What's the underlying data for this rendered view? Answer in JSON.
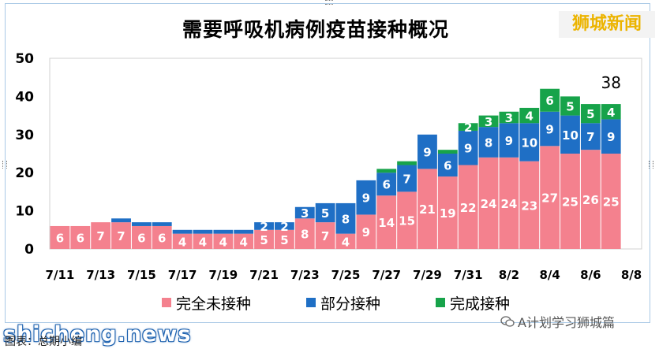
{
  "header": {
    "brand": "狮城新闻"
  },
  "chart_data": {
    "type": "bar",
    "stacked": true,
    "title": "需要呼吸机病例疫苗接种概况",
    "x": [
      "7/11",
      "7/12",
      "7/13",
      "7/14",
      "7/15",
      "7/16",
      "7/17",
      "7/18",
      "7/19",
      "7/20",
      "7/21",
      "7/22",
      "7/23",
      "7/24",
      "7/25",
      "7/26",
      "7/27",
      "7/28",
      "7/29",
      "7/30",
      "7/31",
      "8/1",
      "8/2",
      "8/3",
      "8/4",
      "8/5",
      "8/6",
      "8/7"
    ],
    "tick_labels": [
      "7/11",
      "7/13",
      "7/15",
      "7/17",
      "7/19",
      "7/21",
      "7/23",
      "7/25",
      "7/27",
      "7/29",
      "7/31",
      "8/2",
      "8/4",
      "8/6",
      "8/8"
    ],
    "series": [
      {
        "name": "完全未接种",
        "color": "#f4818e",
        "values": [
          6,
          6,
          7,
          7,
          6,
          6,
          4,
          4,
          4,
          4,
          5,
          5,
          8,
          7,
          4,
          9,
          14,
          15,
          21,
          19,
          22,
          24,
          24,
          23,
          27,
          25,
          26,
          25
        ]
      },
      {
        "name": "部分接种",
        "color": "#1f6fc5",
        "values": [
          0,
          0,
          0,
          1,
          1,
          1,
          1,
          1,
          1,
          1,
          2,
          2,
          3,
          5,
          8,
          9,
          6,
          7,
          9,
          6,
          9,
          8,
          9,
          10,
          9,
          10,
          7,
          9
        ]
      },
      {
        "name": "完成接种",
        "color": "#17a34a",
        "values": [
          0,
          0,
          0,
          0,
          0,
          0,
          0,
          0,
          0,
          0,
          0,
          0,
          0,
          0,
          0,
          0,
          1,
          1,
          0,
          1,
          2,
          3,
          3,
          4,
          6,
          5,
          5,
          4
        ]
      }
    ],
    "data_labels": {
      "完全未接种": [
        "6",
        "6",
        "7",
        "7",
        "6",
        "6",
        "4",
        "4",
        "4",
        "4",
        "5",
        "5",
        "8",
        "7",
        "4",
        "9",
        "14",
        "15",
        "21",
        "19",
        "22",
        "24",
        "24",
        "23",
        "27",
        "25",
        "26",
        "25"
      ],
      "部分接种": [
        "",
        "",
        "",
        "",
        "",
        "",
        "",
        "",
        "",
        "",
        "2",
        "2",
        "3",
        "5",
        "8",
        "9",
        "6",
        "7",
        "9",
        "6",
        "9",
        "8",
        "9",
        "10",
        "9",
        "10",
        "7",
        "9"
      ],
      "完成接种": [
        "",
        "",
        "",
        "",
        "",
        "",
        "",
        "",
        "",
        "",
        "",
        "",
        "",
        "",
        "",
        "",
        "",
        "",
        "",
        "",
        "2",
        "3",
        "3",
        "4",
        "6",
        "5",
        "5",
        "4"
      ]
    },
    "annotation": "38",
    "ylim": [
      0,
      50
    ],
    "yticks": [
      0,
      10,
      20,
      30,
      40,
      50
    ],
    "grid": false,
    "legend": "bottom"
  },
  "footer": {
    "watermark": "shicheng.news",
    "channel": "A计划学习狮城篇",
    "caption": "图表：总期小编"
  },
  "icons": {
    "channel": "wechat-icon"
  }
}
